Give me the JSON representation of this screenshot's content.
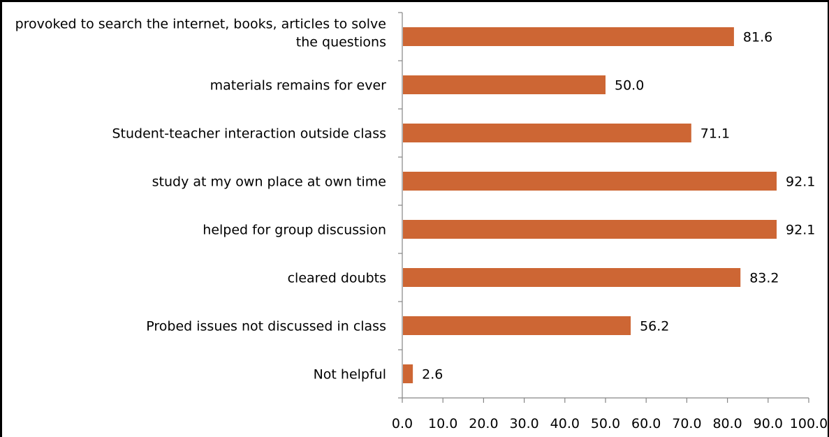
{
  "chart_data": {
    "type": "bar",
    "orientation": "horizontal",
    "categories": [
      "provoked to search the internet, books, articles to solve the questions",
      "materials remains for ever",
      "Student-teacher interaction outside class",
      "study at my own place at own time",
      "helped for group discussion",
      "cleared doubts",
      "Probed issues not discussed in class",
      "Not helpful"
    ],
    "category_lines": [
      [
        "provoked to search the internet, books, articles to solve",
        "the questions"
      ],
      [
        "materials remains for ever"
      ],
      [
        "Student-teacher interaction outside class"
      ],
      [
        "study at my own place at own time"
      ],
      [
        "helped for group discussion"
      ],
      [
        "cleared doubts"
      ],
      [
        "Probed issues not discussed in class"
      ],
      [
        "Not helpful"
      ]
    ],
    "values": [
      81.6,
      50.0,
      71.1,
      92.1,
      92.1,
      83.2,
      56.2,
      2.6
    ],
    "value_labels": [
      "81.6",
      "50.0",
      "71.1",
      "92.1",
      "92.1",
      "83.2",
      "56.2",
      "2.6"
    ],
    "xlim": [
      0,
      100
    ],
    "xticks": [
      "0.0",
      "10.0",
      "20.0",
      "30.0",
      "40.0",
      "50.0",
      "60.0",
      "70.0",
      "80.0",
      "90.0",
      "100.0"
    ],
    "bar_color": "#CD6634",
    "axis_color": "#868686",
    "grid": false,
    "legend": "none",
    "title": "",
    "xlabel": "",
    "ylabel": ""
  }
}
